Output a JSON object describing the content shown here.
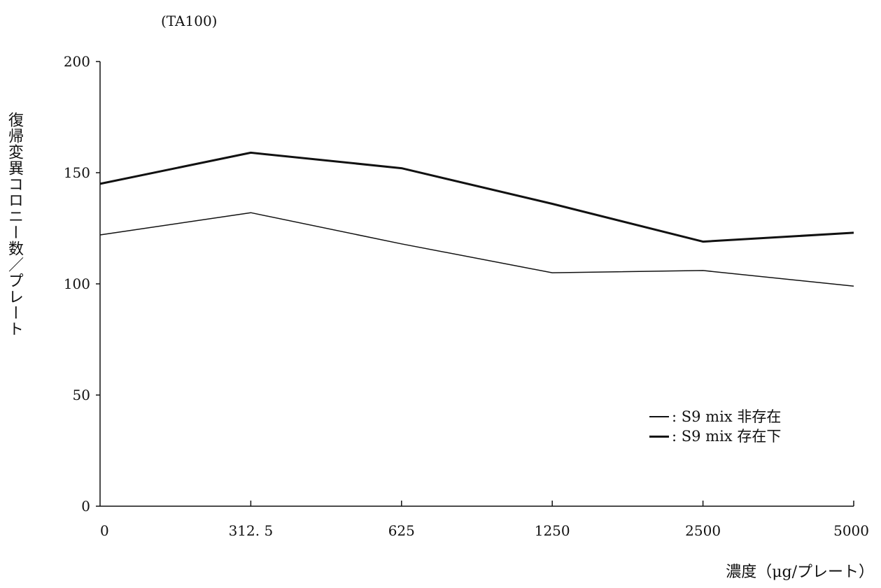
{
  "chart_data": {
    "type": "line",
    "subtitle": "(TA100)",
    "xlabel": "濃度（μg/プレート）",
    "ylabel": "復帰変異コロニー数／プレート",
    "categories": [
      "0",
      "312.5",
      "625",
      "1250",
      "2500",
      "5000"
    ],
    "category_labels": [
      "0",
      "312. 5",
      "625",
      "1250",
      "2500",
      "5000"
    ],
    "y_ticks": [
      "0",
      "50",
      "100",
      "150",
      "200"
    ],
    "ylim": [
      0,
      200
    ],
    "grid": false,
    "legend_position": "lower-right",
    "series": [
      {
        "name": "S9 mix 非存在",
        "legend_label": ": S9 mix 非存在",
        "style": "thin",
        "values": [
          122,
          132,
          118,
          105,
          106,
          99
        ]
      },
      {
        "name": "S9 mix 存在下",
        "legend_label": ": S9 mix 存在下",
        "style": "thick",
        "values": [
          145,
          159,
          152,
          136,
          119,
          123
        ]
      }
    ]
  }
}
